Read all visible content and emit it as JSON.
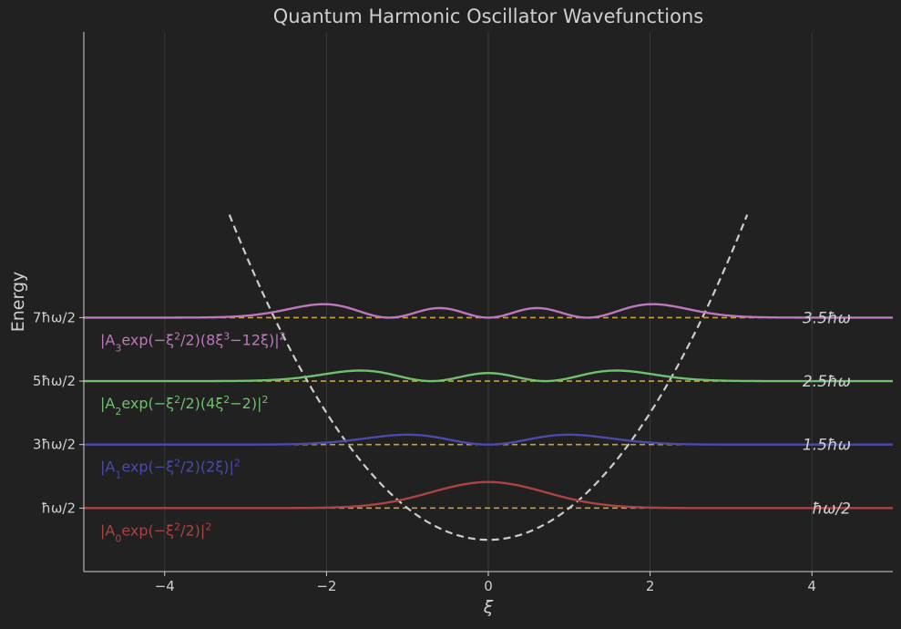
{
  "chart_data": {
    "type": "line",
    "title": "Quantum Harmonic Oscillator Wavefunctions",
    "xlabel": "ξ",
    "ylabel": "Energy",
    "xlim": [
      -5,
      5
    ],
    "ylim": [
      -0.5,
      8
    ],
    "grid": "vertical",
    "legend": "none",
    "x_ticks": [
      {
        "value": -4,
        "label": "−4"
      },
      {
        "value": -2,
        "label": "−2"
      },
      {
        "value": 0,
        "label": "0"
      },
      {
        "value": 2,
        "label": "2"
      },
      {
        "value": 4,
        "label": "4"
      }
    ],
    "y_ticks": [
      {
        "value": 0.5,
        "label": "ħω/2"
      },
      {
        "value": 1.5,
        "label": "3ħω/2"
      },
      {
        "value": 2.5,
        "label": "5ħω/2"
      },
      {
        "value": 3.5,
        "label": "7ħω/2"
      }
    ],
    "potential": {
      "formula": "V(ξ) = ξ²/2",
      "style": "dashed",
      "color": "#cccccc",
      "x": [
        -3.0,
        -2.5,
        -2.0,
        -1.5,
        -1.0,
        -0.5,
        0.0,
        0.5,
        1.0,
        1.5,
        2.0,
        2.5,
        3.0
      ],
      "y": [
        4.5,
        3.125,
        2.0,
        1.125,
        0.5,
        0.125,
        0.0,
        0.125,
        0.5,
        1.125,
        2.0,
        3.125,
        4.5
      ]
    },
    "levels": [
      {
        "n": 0,
        "energy": 0.5,
        "energy_label": "ħω/2",
        "color": "#a94444"
      },
      {
        "n": 1,
        "energy": 1.5,
        "energy_label": "1.5ħω",
        "color": "#4a4aaa"
      },
      {
        "n": 2,
        "energy": 2.5,
        "energy_label": "2.5ħω",
        "color": "#6fbf6f"
      },
      {
        "n": 3,
        "energy": 3.5,
        "energy_label": "3.5ħω",
        "color": "#bf77bf"
      }
    ],
    "level_line_color": "#c9a13c",
    "series": [
      {
        "color": "#a94444",
        "formula_parts": [
          "|A",
          "0",
          "exp(−ξ",
          "2",
          "/2)|",
          "2"
        ],
        "offset": 0.5,
        "x": [
          -5,
          -4.5,
          -4,
          -3.5,
          -3,
          -2.5,
          -2,
          -1.5,
          -1,
          -0.5,
          0,
          0.5,
          1,
          1.5,
          2,
          2.5,
          3,
          3.5,
          4,
          4.5,
          5
        ],
        "y": [
          0.5,
          0.5,
          0.5,
          0.501,
          0.504,
          0.514,
          0.542,
          0.611,
          0.705,
          0.815,
          0.91,
          0.815,
          0.705,
          0.611,
          0.542,
          0.514,
          0.504,
          0.501,
          0.5,
          0.5,
          0.5
        ]
      },
      {
        "color": "#4a4aaa",
        "formula_parts": [
          "|A",
          "1",
          "exp(−ξ",
          "2",
          "/2)(2ξ)|",
          "2"
        ],
        "offset": 1.5,
        "x": [
          -5,
          -4.5,
          -4,
          -3.5,
          -3,
          -2.5,
          -2,
          -1.5,
          -1,
          -0.5,
          0,
          0.5,
          1,
          1.5,
          2,
          2.5,
          3,
          3.5,
          4,
          4.5,
          5
        ],
        "y": [
          1.5,
          1.5,
          1.501,
          1.507,
          1.532,
          1.597,
          1.728,
          1.877,
          1.92,
          1.78,
          1.5,
          1.78,
          1.92,
          1.877,
          1.728,
          1.597,
          1.532,
          1.507,
          1.501,
          1.5,
          1.5
        ]
      },
      {
        "color": "#6fbf6f",
        "formula_parts": [
          "|A",
          "2",
          "exp(−ξ",
          "2",
          "/2)(4ξ",
          "2",
          "−2)|",
          "2"
        ],
        "offset": 2.5,
        "x": [
          -5,
          -4.5,
          -4,
          -3.5,
          -3,
          -2.5,
          -2,
          -1.5,
          -1,
          -0.5,
          0,
          0.5,
          1,
          1.5,
          2,
          2.5,
          3,
          3.5,
          4,
          4.5,
          5
        ],
        "y": [
          2.5,
          2.5,
          2.503,
          2.519,
          2.575,
          2.705,
          2.843,
          2.878,
          2.601,
          2.512,
          2.78,
          2.512,
          2.601,
          2.878,
          2.843,
          2.705,
          2.575,
          2.519,
          2.503,
          2.5,
          2.5
        ]
      },
      {
        "color": "#bf77bf",
        "formula_parts": [
          "|A",
          "3",
          "exp(−ξ",
          "2",
          "/2)(8ξ",
          "3",
          "−12ξ)|",
          "2"
        ],
        "offset": 3.5,
        "x": [
          -5,
          -4.5,
          -4,
          -3.5,
          -3,
          -2.5,
          -2,
          -1.5,
          -1,
          -0.5,
          0,
          0.5,
          1,
          1.5,
          2,
          2.5,
          3,
          3.5,
          4,
          4.5,
          5
        ],
        "y": [
          3.5,
          3.5,
          3.505,
          3.531,
          3.622,
          3.774,
          3.843,
          3.587,
          3.611,
          3.768,
          3.5,
          3.768,
          3.611,
          3.587,
          3.843,
          3.774,
          3.622,
          3.531,
          3.505,
          3.5,
          3.5
        ]
      }
    ]
  }
}
